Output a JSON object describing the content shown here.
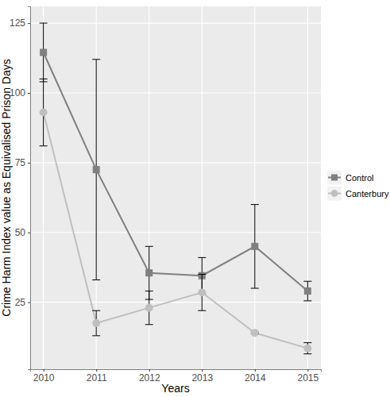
{
  "chart_data": {
    "type": "line",
    "x_label": "Years",
    "y_label": "Crime Harm Index value as Equivalised Prison Days",
    "x": [
      2010,
      2011,
      2012,
      2013,
      2014,
      2015
    ],
    "xlim": [
      2009.75,
      2015.25
    ],
    "xticks": [
      2010,
      2011,
      2012,
      2013,
      2014,
      2015
    ],
    "ylim": [
      1,
      131
    ],
    "yticks": [
      25,
      50,
      75,
      100,
      125
    ],
    "grid": true,
    "legend": "right",
    "series": [
      {
        "name": "Control",
        "color": "#7f7f7f",
        "marker": "square",
        "values": [
          114.5,
          72.5,
          35.5,
          34.5,
          45,
          29
        ],
        "errors": [
          10.5,
          39.5,
          9.5,
          6.5,
          15,
          3.5
        ]
      },
      {
        "name": "Canterbury",
        "color": "#bfbfbf",
        "marker": "circle",
        "values": [
          93,
          17.5,
          23,
          28.5,
          14,
          8.5
        ],
        "errors": [
          12,
          4.5,
          6,
          6.5,
          0.3,
          2
        ]
      }
    ]
  }
}
